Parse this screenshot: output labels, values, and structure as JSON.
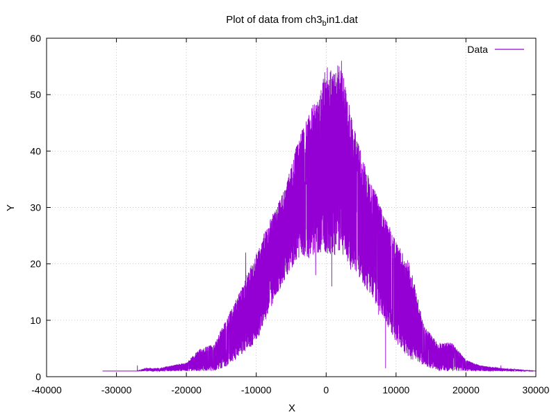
{
  "chart_data": {
    "type": "line",
    "title_main": "Plot of data from ch3",
    "title_sub": "b",
    "title_tail": "in1.dat",
    "xlabel": "X",
    "ylabel": "Y",
    "xlim": [
      -40000,
      30000
    ],
    "ylim": [
      0,
      60
    ],
    "xticks": [
      -40000,
      -30000,
      -20000,
      -10000,
      0,
      10000,
      20000,
      30000
    ],
    "yticks": [
      0,
      10,
      20,
      30,
      40,
      50,
      60
    ],
    "grid": true,
    "legend_position": "top-right",
    "series": [
      {
        "name": "Data",
        "color": "#9400d3",
        "envelope": {
          "x": [
            -32000,
            -27000,
            -26000,
            -24000,
            -22000,
            -20000,
            -18000,
            -16000,
            -14000,
            -12000,
            -10000,
            -8000,
            -6000,
            -4000,
            -2000,
            -1000,
            0,
            1000,
            2000,
            3000,
            4000,
            6000,
            8000,
            10000,
            12000,
            14000,
            16000,
            18000,
            20000,
            22000,
            25000,
            30000
          ],
          "upper": [
            1,
            1,
            1.5,
            1.5,
            2,
            2.5,
            5,
            6,
            11,
            16,
            22,
            28,
            33,
            42,
            48,
            50,
            55,
            54,
            56,
            50,
            44,
            36,
            30,
            24,
            20,
            9,
            6,
            6,
            3,
            2,
            1.5,
            1
          ],
          "lower": [
            1,
            1,
            1,
            1,
            1,
            1,
            1,
            1,
            2,
            4,
            6,
            12,
            17,
            21,
            21,
            22,
            21,
            21,
            22,
            20,
            19,
            15,
            11,
            6,
            3,
            2,
            1,
            1,
            1,
            1,
            1,
            1
          ]
        },
        "spikes": [
          {
            "x": -27000,
            "y": 2
          },
          {
            "x": -11500,
            "y": 22
          },
          {
            "x": -1500,
            "y": 18
          },
          {
            "x": -500,
            "y": 48
          },
          {
            "x": 800,
            "y": 16
          },
          {
            "x": 2200,
            "y": 56
          },
          {
            "x": 3500,
            "y": 19
          },
          {
            "x": 7500,
            "y": 11
          },
          {
            "x": 8500,
            "y": 1.5
          },
          {
            "x": 25000,
            "y": 2
          }
        ]
      }
    ]
  }
}
